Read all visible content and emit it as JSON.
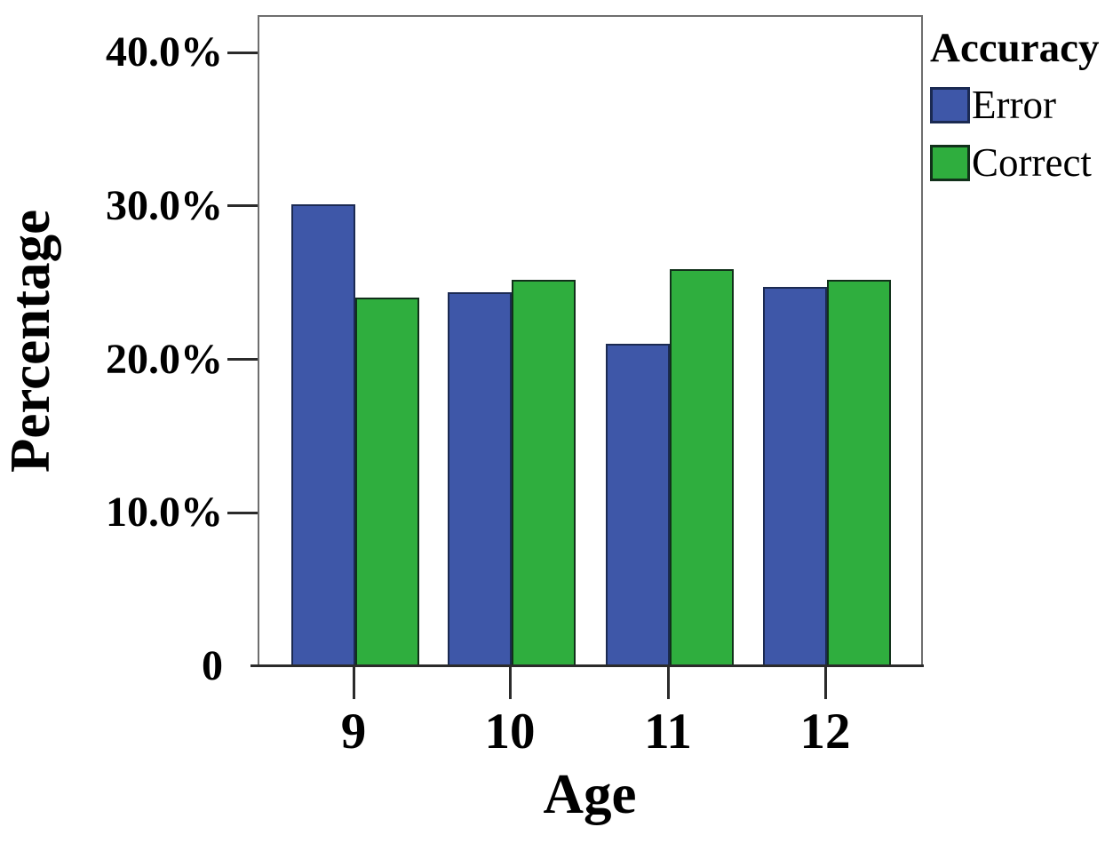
{
  "chart_data": {
    "type": "bar",
    "title": "",
    "xlabel": "Age",
    "ylabel": "Percentage",
    "categories": [
      "9",
      "10",
      "11",
      "12"
    ],
    "series": [
      {
        "name": "Error",
        "color": "#3E57A8",
        "border_color": "#1b2a52",
        "values": [
          30.1,
          24.4,
          21.0,
          24.7
        ]
      },
      {
        "name": "Correct",
        "color": "#2FAE3E",
        "border_color": "#11301a",
        "values": [
          24.0,
          25.2,
          25.9,
          25.2
        ]
      }
    ],
    "legend_title": "Accuracy",
    "legend_position": "outside-top-right",
    "y_ticks": [
      {
        "label": "40.0%",
        "value": 40
      },
      {
        "label": "30.0%",
        "value": 30
      },
      {
        "label": "20.0%",
        "value": 20
      },
      {
        "label": "10.0%",
        "value": 10
      },
      {
        "label": "0",
        "value": 0
      }
    ],
    "ylim": [
      0,
      42.44
    ],
    "grid": false,
    "unit": "percent"
  },
  "colors": {
    "background": "#ffffff",
    "frame": "#6e6e6e",
    "axis": "#2b2b2b",
    "text": "#000000"
  }
}
